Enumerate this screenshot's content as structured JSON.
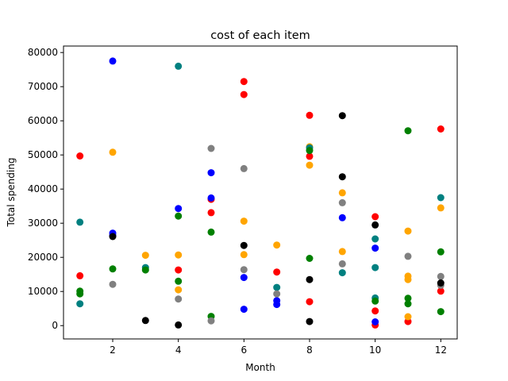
{
  "chart_data": {
    "type": "scatter",
    "title": "cost of each item",
    "xlabel": "Month",
    "ylabel": "Total spending",
    "xlim": [
      0.5,
      12.5
    ],
    "ylim": [
      -3900,
      81900
    ],
    "xticks": [
      2,
      4,
      6,
      8,
      10,
      12
    ],
    "yticks": [
      0,
      10000,
      20000,
      30000,
      40000,
      50000,
      60000,
      70000,
      80000
    ],
    "grid": false,
    "legend": "none",
    "series": [
      {
        "color": "#ff0000",
        "points": [
          [
            1,
            49700
          ],
          [
            1,
            14600
          ],
          [
            4,
            16300
          ],
          [
            5,
            37000
          ],
          [
            5,
            33100
          ],
          [
            6,
            71500
          ],
          [
            6,
            67700
          ],
          [
            7,
            15700
          ],
          [
            8,
            61600
          ],
          [
            8,
            49600
          ],
          [
            8,
            7000
          ],
          [
            10,
            31900
          ],
          [
            10,
            4300
          ],
          [
            10,
            200
          ],
          [
            11,
            1200
          ],
          [
            12,
            57600
          ],
          [
            12,
            10100
          ]
        ]
      },
      {
        "color": "#0000ff",
        "points": [
          [
            2,
            77500
          ],
          [
            2,
            27100
          ],
          [
            2,
            26400
          ],
          [
            4,
            34300
          ],
          [
            5,
            44800
          ],
          [
            5,
            37400
          ],
          [
            6,
            14100
          ],
          [
            6,
            4800
          ],
          [
            7,
            7300
          ],
          [
            7,
            6200
          ],
          [
            9,
            31600
          ],
          [
            10,
            22700
          ],
          [
            10,
            1100
          ]
        ]
      },
      {
        "color": "#ffa500",
        "points": [
          [
            2,
            50800
          ],
          [
            3,
            20600
          ],
          [
            4,
            20700
          ],
          [
            4,
            10500
          ],
          [
            6,
            30600
          ],
          [
            6,
            20800
          ],
          [
            7,
            23600
          ],
          [
            8,
            52400
          ],
          [
            8,
            47000
          ],
          [
            9,
            38900
          ],
          [
            9,
            21700
          ],
          [
            11,
            27700
          ],
          [
            11,
            14500
          ],
          [
            11,
            13500
          ],
          [
            11,
            2600
          ],
          [
            12,
            34500
          ]
        ]
      },
      {
        "color": "#008080",
        "points": [
          [
            1,
            30300
          ],
          [
            1,
            6400
          ],
          [
            3,
            17000
          ],
          [
            4,
            76000
          ],
          [
            7,
            11200
          ],
          [
            8,
            52100
          ],
          [
            9,
            15500
          ],
          [
            10,
            25400
          ],
          [
            10,
            17000
          ],
          [
            10,
            8100
          ],
          [
            12,
            37500
          ]
        ]
      },
      {
        "color": "#008000",
        "points": [
          [
            1,
            10100
          ],
          [
            1,
            9300
          ],
          [
            2,
            16600
          ],
          [
            3,
            16300
          ],
          [
            4,
            32100
          ],
          [
            4,
            13000
          ],
          [
            5,
            27400
          ],
          [
            5,
            2700
          ],
          [
            8,
            51300
          ],
          [
            8,
            19700
          ],
          [
            10,
            7200
          ],
          [
            11,
            57100
          ],
          [
            11,
            8000
          ],
          [
            11,
            6400
          ],
          [
            12,
            21600
          ],
          [
            12,
            4100
          ]
        ]
      },
      {
        "color": "#808080",
        "points": [
          [
            2,
            12100
          ],
          [
            4,
            7800
          ],
          [
            5,
            51900
          ],
          [
            5,
            1400
          ],
          [
            6,
            46000
          ],
          [
            6,
            16400
          ],
          [
            7,
            9300
          ],
          [
            9,
            36000
          ],
          [
            9,
            18100
          ],
          [
            11,
            20300
          ],
          [
            12,
            14400
          ],
          [
            12,
            11800
          ]
        ]
      },
      {
        "color": "#000000",
        "points": [
          [
            2,
            26100
          ],
          [
            3,
            1500
          ],
          [
            4,
            200
          ],
          [
            6,
            23500
          ],
          [
            8,
            13500
          ],
          [
            8,
            1200
          ],
          [
            9,
            61500
          ],
          [
            9,
            43600
          ],
          [
            10,
            29500
          ],
          [
            12,
            12500
          ]
        ]
      }
    ]
  }
}
